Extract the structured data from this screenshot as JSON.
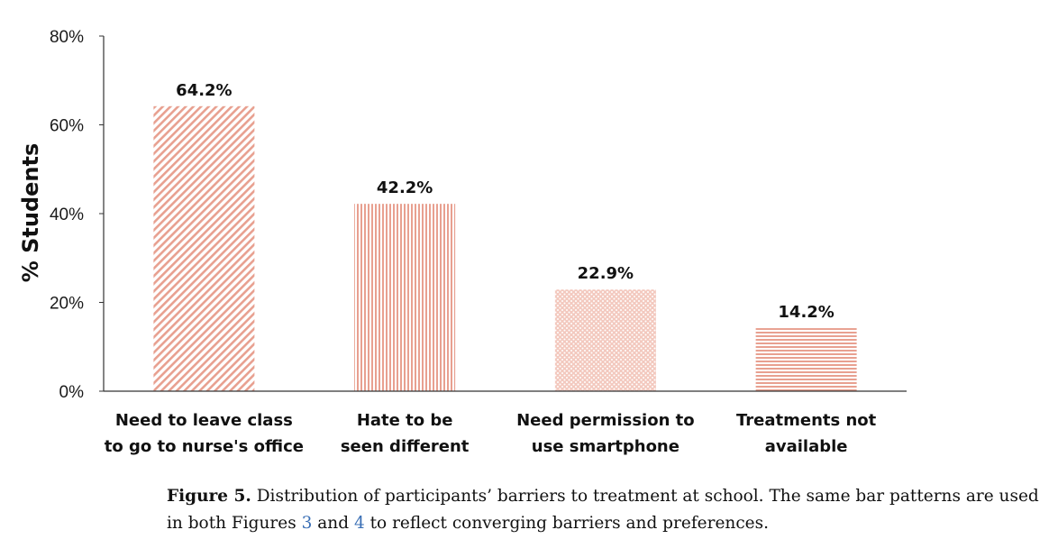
{
  "chart_data": {
    "type": "bar",
    "categories": [
      [
        "Need to leave class",
        "to go to nurse's office"
      ],
      [
        "Hate to be",
        "seen different"
      ],
      [
        "Need permission to",
        "use smartphone"
      ],
      [
        "Treatments not",
        "available"
      ]
    ],
    "values": [
      64.2,
      42.2,
      22.9,
      14.2
    ],
    "value_labels": [
      "64.2%",
      "42.2%",
      "22.9%",
      "14.2%"
    ],
    "patterns": [
      "diagonal-stripes",
      "vertical-stripes",
      "dots",
      "horizontal-stripes"
    ],
    "bar_color": "#e8a090",
    "ylabel": "% Students",
    "ylim": [
      0,
      80
    ],
    "yticks": [
      0,
      20,
      40,
      60,
      80
    ],
    "ytick_labels": [
      "0%",
      "20%",
      "40%",
      "60%",
      "80%"
    ],
    "grid": false,
    "legend": "none"
  },
  "caption": {
    "label": "Figure 5.",
    "text_1": " Distribution of participants’ barriers to treatment at school. The same bar patterns are used in both Figures ",
    "ref_1": "3",
    "text_2": " and ",
    "ref_2": "4",
    "text_3": " to reflect converging barriers and preferences."
  }
}
